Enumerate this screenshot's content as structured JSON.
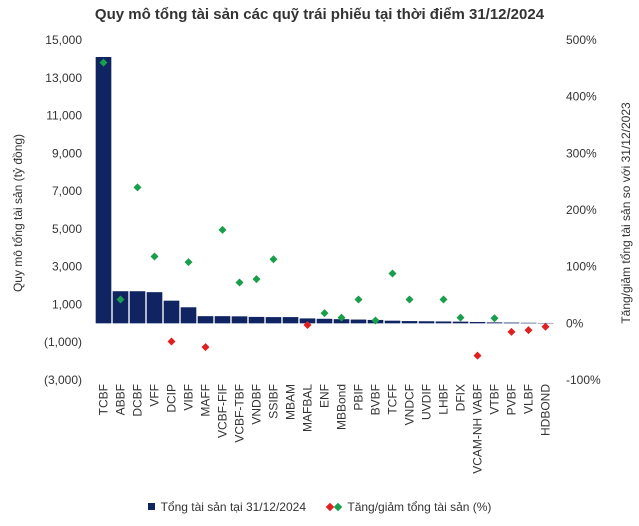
{
  "chart_data": {
    "type": "bar",
    "title": "Quy mô tổng tài sản các quỹ trái phiếu tại thời điểm 31/12/2024",
    "ylabel_left": "Quy mô tổng tài sản (tỷ đồng)",
    "ylabel_right": "Tăng/giảm tổng tài sản so với 31/12/2023",
    "categories": [
      "TCBF",
      "ABBF",
      "DCBF",
      "VFF",
      "DCIP",
      "VIBF",
      "MAFF",
      "VCBF-FIF",
      "VCBF-TBF",
      "VNDBF",
      "SSIBF",
      "MBAM",
      "MAFBAL",
      "ENF",
      "MBBond",
      "PBIF",
      "BVBF",
      "TCFF",
      "VNDCF",
      "UVDIF",
      "LHBF",
      "DFIX",
      "VCAM-NH VABF",
      "VTBF",
      "PVBF",
      "VLBF",
      "HDBOND"
    ],
    "y_left_ticks": [
      "15,000",
      "13,000",
      "11,000",
      "9,000",
      "7,000",
      "5,000",
      "3,000",
      "1,000",
      "(1,000)",
      "(3,000)"
    ],
    "y_left_tick_values": [
      15000,
      13000,
      11000,
      9000,
      7000,
      5000,
      3000,
      1000,
      -1000,
      -3000
    ],
    "y_left_lim": [
      -3000,
      15000
    ],
    "y_right_ticks": [
      "500%",
      "400%",
      "300%",
      "200%",
      "100%",
      "0%",
      "-100%"
    ],
    "y_right_tick_values": [
      500,
      400,
      300,
      200,
      100,
      0,
      -100
    ],
    "y_right_lim": [
      -100,
      500
    ],
    "series": [
      {
        "name": "Tổng tài sản tại 31/12/2024",
        "type": "bar",
        "axis": "left",
        "color": "#0f2460",
        "values": [
          14100,
          1700,
          1700,
          1650,
          1200,
          850,
          380,
          380,
          370,
          340,
          330,
          330,
          260,
          240,
          220,
          200,
          180,
          140,
          120,
          110,
          100,
          90,
          70,
          50,
          40,
          30,
          20
        ]
      },
      {
        "name": "Tăng/giảm tổng tài sản (%)",
        "type": "scatter",
        "axis": "right",
        "marker": "diamond",
        "color_up": "#1a9e4b",
        "color_down": "#e02020",
        "values": [
          460,
          42,
          240,
          118,
          -32,
          108,
          -42,
          165,
          72,
          78,
          113,
          null,
          -3,
          18,
          10,
          42,
          5,
          88,
          42,
          null,
          42,
          10,
          -57,
          9,
          -15,
          -12,
          -6
        ]
      }
    ],
    "legend_position": "bottom",
    "grid": false
  }
}
